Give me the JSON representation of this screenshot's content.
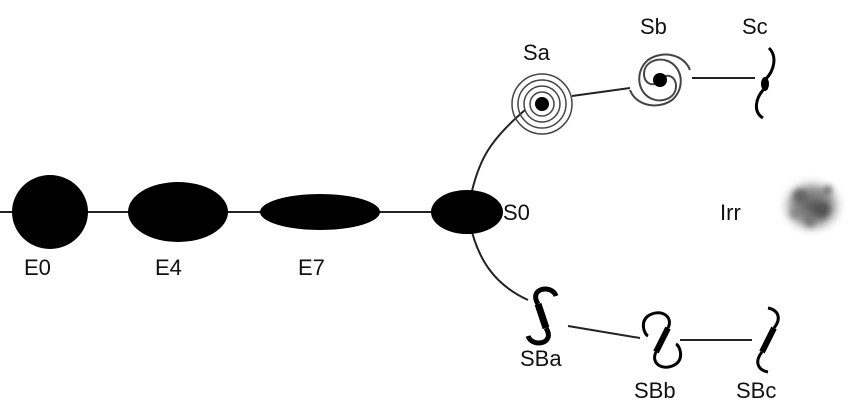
{
  "diagram": {
    "labels": {
      "e0": "E0",
      "e4": "E4",
      "e7": "E7",
      "s0": "S0",
      "sa": "Sa",
      "sb": "Sb",
      "sc": "Sc",
      "sba": "SBa",
      "sbb": "SBb",
      "sbc": "SBc",
      "irr": "Irr"
    }
  }
}
